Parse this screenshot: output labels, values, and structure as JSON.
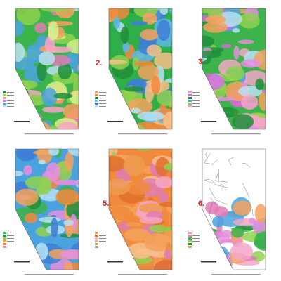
{
  "panels": [
    {
      "label": "2."
    },
    {
      "label": "3."
    },
    {
      "label": "5."
    },
    {
      "label": "6."
    }
  ]
}
